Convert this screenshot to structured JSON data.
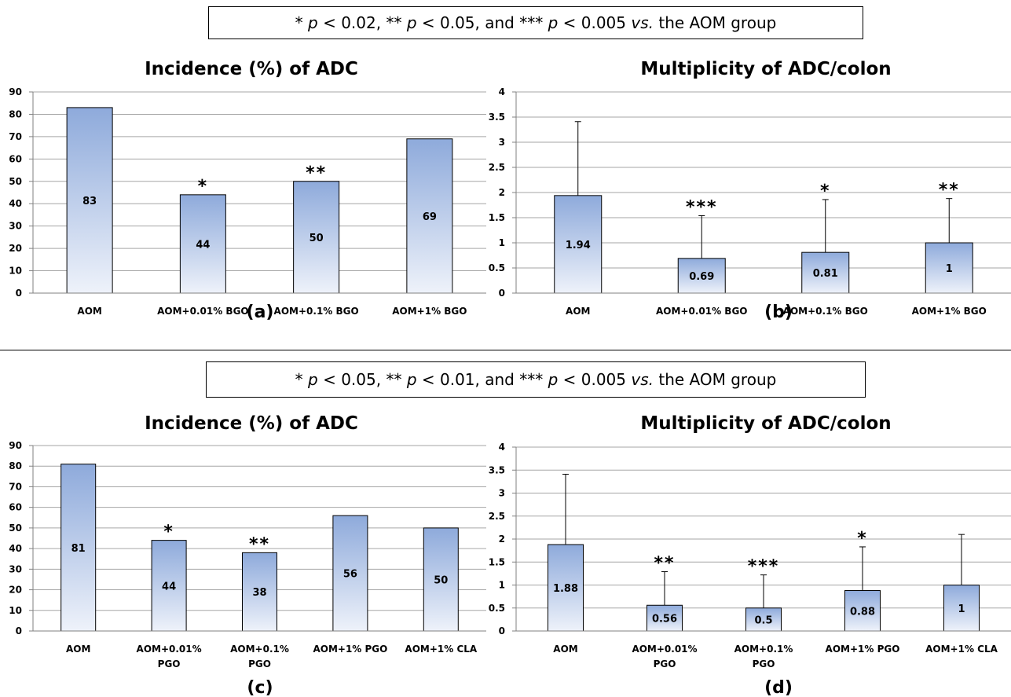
{
  "notes": {
    "top": {
      "pre": "* ",
      "p1": "p",
      "t1": " < 0.02, ** ",
      "p2": "p",
      "t2": " < 0.05, and *** ",
      "p3": "p",
      "t3": " < 0.005 ",
      "vs": "vs.",
      "t4": " the AOM group"
    },
    "bottom": {
      "pre": "* ",
      "p1": "p",
      "t1": " < 0.05, ** ",
      "p2": "p",
      "t2": " < 0.01, and *** ",
      "p3": "p",
      "t3": " < 0.005 ",
      "vs": "vs.",
      "t4": " the AOM group"
    }
  },
  "colors": {
    "bar_top": "#8eaadb",
    "bar_bottom": "#eef2fa",
    "grid": "#a6a6a6",
    "axis": "#808080"
  },
  "chart_data": [
    {
      "type": "bar",
      "title": "Incidence (%) of ADC",
      "panel_label": "(a)",
      "categories": [
        [
          "AOM"
        ],
        [
          "AOM+0.01% BGO"
        ],
        [
          "AOM+0.1% BGO"
        ],
        [
          "AOM+1% BGO"
        ]
      ],
      "values": [
        83,
        44,
        50,
        69
      ],
      "value_labels": [
        "83",
        "44",
        "50",
        "69"
      ],
      "significance": [
        "",
        "*",
        "**",
        ""
      ],
      "ylim": [
        0,
        90
      ],
      "yticks": [
        0,
        10,
        20,
        30,
        40,
        50,
        60,
        70,
        80,
        90
      ],
      "grid": true
    },
    {
      "type": "bar",
      "title": "Multiplicity of ADC/colon",
      "panel_label": "(b)",
      "categories": [
        [
          "AOM"
        ],
        [
          "AOM+0.01% BGO"
        ],
        [
          "AOM+0.1% BGO"
        ],
        [
          "AOM+1% BGO"
        ]
      ],
      "values": [
        1.94,
        0.69,
        0.81,
        1
      ],
      "value_labels": [
        "1.94",
        "0.69",
        "0.81",
        "1"
      ],
      "errors": [
        1.47,
        0.85,
        1.05,
        0.88
      ],
      "significance": [
        "",
        "***",
        "*",
        "**"
      ],
      "ylim": [
        0,
        4
      ],
      "yticks": [
        0,
        0.5,
        1,
        1.5,
        2,
        2.5,
        3,
        3.5,
        4
      ],
      "grid": true
    },
    {
      "type": "bar",
      "title": "Incidence (%) of ADC",
      "panel_label": "(c)",
      "categories": [
        [
          "AOM"
        ],
        [
          "AOM+0.01%",
          "PGO"
        ],
        [
          "AOM+0.1%",
          "PGO"
        ],
        [
          "AOM+1% PGO"
        ],
        [
          "AOM+1% CLA"
        ]
      ],
      "values": [
        81,
        44,
        38,
        56,
        50
      ],
      "value_labels": [
        "81",
        "44",
        "38",
        "56",
        "50"
      ],
      "significance": [
        "",
        "*",
        "**",
        "",
        ""
      ],
      "ylim": [
        0,
        90
      ],
      "yticks": [
        0,
        10,
        20,
        30,
        40,
        50,
        60,
        70,
        80,
        90
      ],
      "grid": true
    },
    {
      "type": "bar",
      "title": "Multiplicity of ADC/colon",
      "panel_label": "(d)",
      "categories": [
        [
          "AOM"
        ],
        [
          "AOM+0.01%",
          "PGO"
        ],
        [
          "AOM+0.1%",
          "PGO"
        ],
        [
          "AOM+1% PGO"
        ],
        [
          "AOM+1% CLA"
        ]
      ],
      "values": [
        1.88,
        0.56,
        0.5,
        0.88,
        1
      ],
      "value_labels": [
        "1.88",
        "0.56",
        "0.5",
        "0.88",
        "1"
      ],
      "errors": [
        1.53,
        0.73,
        0.72,
        0.95,
        1.1
      ],
      "significance": [
        "",
        "**",
        "***",
        "*",
        ""
      ],
      "ylim": [
        0,
        4
      ],
      "yticks": [
        0,
        0.5,
        1,
        1.5,
        2,
        2.5,
        3,
        3.5,
        4
      ],
      "grid": true
    }
  ]
}
